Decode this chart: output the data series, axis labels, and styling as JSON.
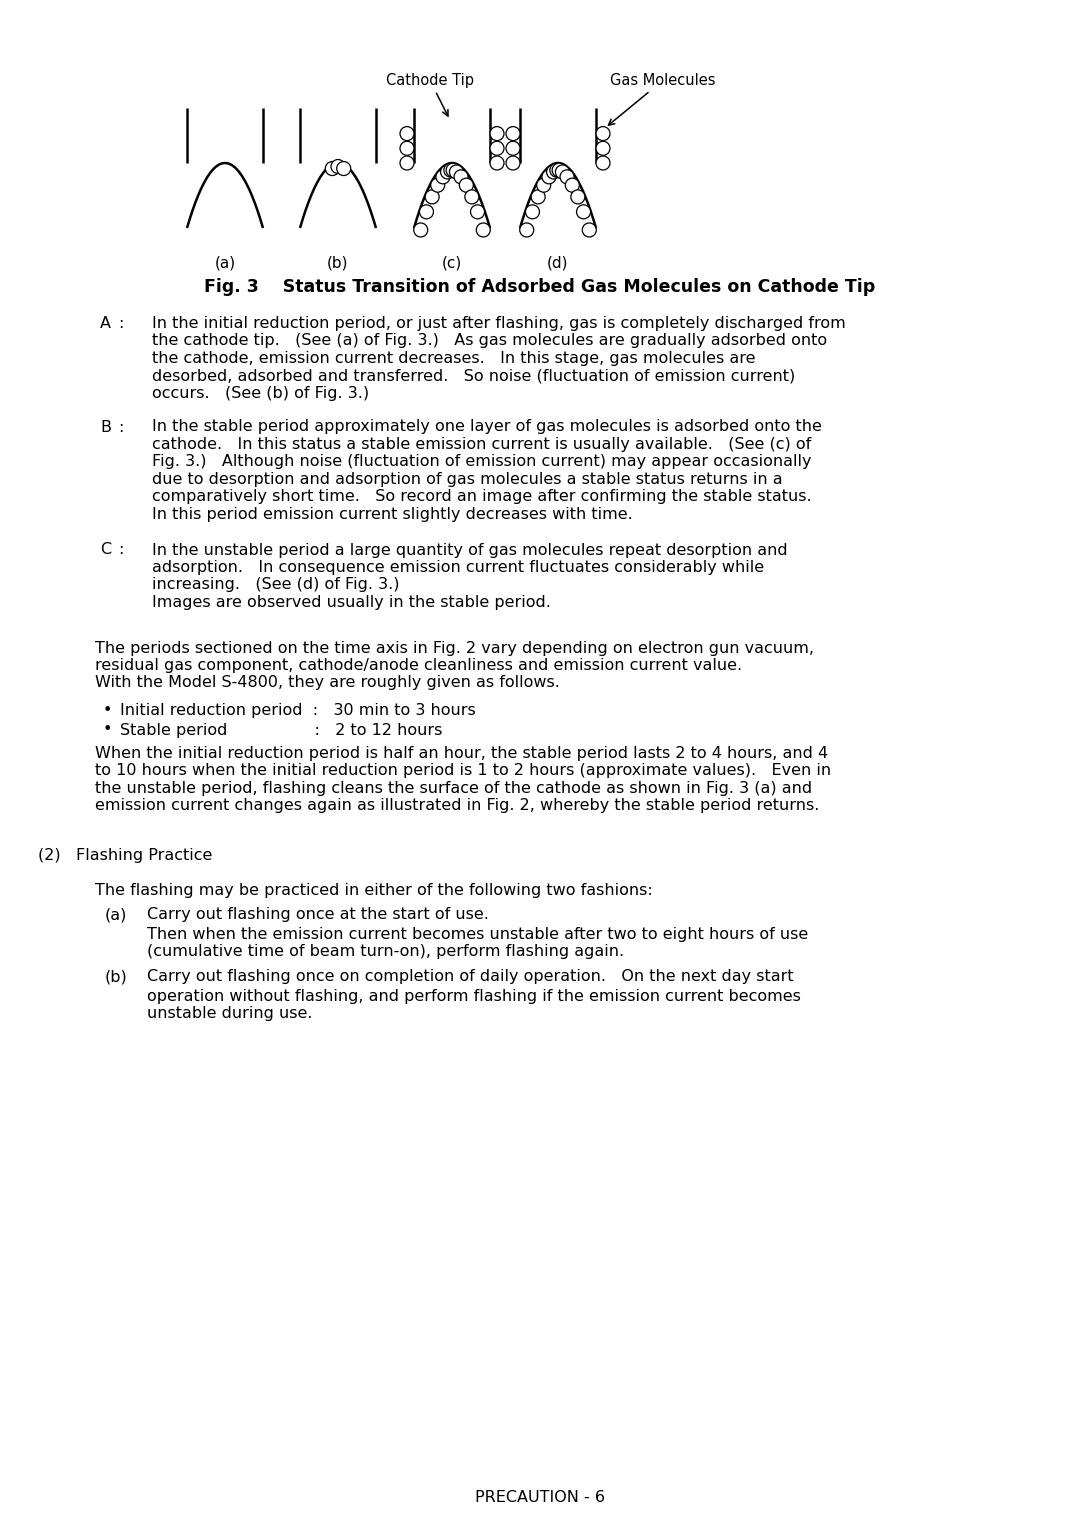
{
  "bg_color": "#ffffff",
  "text_color": "#000000",
  "fig_caption": "Fig. 3    Status Transition of Adsorbed Gas Molecules on Cathode Tip",
  "label_a": "(a)",
  "label_b": "(b)",
  "label_c": "(c)",
  "label_d": "(d)",
  "cathode_tip_label": "Cathode Tip",
  "gas_molecules_label": "Gas Molecules",
  "section_A_label": "A",
  "section_B_label": "B",
  "section_C_label": "C",
  "section_A_text": "In the initial reduction period, or just after flashing, gas is completely discharged from\nthe cathode tip.   (See (a) of Fig. 3.)   As gas molecules are gradually adsorbed onto\nthe cathode, emission current decreases.   In this stage, gas molecules are\ndesorbed, adsorbed and transferred.   So noise (fluctuation of emission current)\noccurs.   (See (b) of Fig. 3.)",
  "section_B_text": "In the stable period approximately one layer of gas molecules is adsorbed onto the\ncathode.   In this status a stable emission current is usually available.   (See (c) of\nFig. 3.)   Although noise (fluctuation of emission current) may appear occasionally\ndue to desorption and adsorption of gas molecules a stable status returns in a\ncomparatively short time.   So record an image after confirming the stable status.\nIn this period emission current slightly decreases with time.",
  "section_C_text": "In the unstable period a large quantity of gas molecules repeat desorption and\nadsorption.   In consequence emission current fluctuates considerably while\nincreasing.   (See (d) of Fig. 3.)\nImages are observed usually in the stable period.",
  "para1": "The periods sectioned on the time axis in Fig. 2 vary depending on electron gun vacuum,\nresidual gas component, cathode/anode cleanliness and emission current value.\nWith the Model S-4800, they are roughly given as follows.",
  "bullet1_label": "Initial reduction period  :",
  "bullet1_value": "30 min to 3 hours",
  "bullet2_label": "Stable period",
  "bullet2_colon": ":",
  "bullet2_value": "2 to 12 hours",
  "para2": "When the initial reduction period is half an hour, the stable period lasts 2 to 4 hours, and 4\nto 10 hours when the initial reduction period is 1 to 2 hours (approximate values).   Even in\nthe unstable period, flashing cleans the surface of the cathode as shown in Fig. 3 (a) and\nemission current changes again as illustrated in Fig. 2, whereby the stable period returns.",
  "section2_header": "(2)   Flashing Practice",
  "section2_intro": "The flashing may be practiced in either of the following two fashions:",
  "item_a_label": "(a)",
  "item_a_text1": "Carry out flashing once at the start of use.",
  "item_a_text2": "Then when the emission current becomes unstable after two to eight hours of use\n(cumulative time of beam turn-on), perform flashing again.",
  "item_b_label": "(b)",
  "item_b_text1": "Carry out flashing once on completion of daily operation.   On the next day start",
  "item_b_text2": "operation without flashing, and perform flashing if the emission current becomes\nunstable during use.",
  "footer": "PRECAUTION - 6",
  "font_size_body": 11.5,
  "font_size_caption": 12.5,
  "font_size_labels": 11.0,
  "font_size_footer": 11.5
}
